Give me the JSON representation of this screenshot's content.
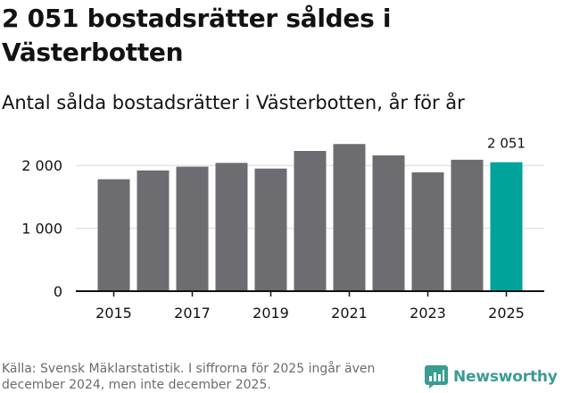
{
  "title": "2 051 bostadsrätter såldes i Västerbotten",
  "subtitle": "Antal sålda bostadsrätter i Västerbotten, år för år",
  "source": "Källa: Svensk Mäklarstatistik. I siffrorna för 2025 ingår även december 2024, men inte december 2025.",
  "brand": {
    "name": "Newsworthy",
    "icon": "newsworthy-logo-icon",
    "color": "#3a9c92"
  },
  "colors": {
    "bar": "#6d6c70",
    "highlight": "#00a39b",
    "grid": "#d9d9d9",
    "axis": "#121212"
  },
  "chart_data": {
    "type": "bar",
    "categories": [
      "2015",
      "2016",
      "2017",
      "2018",
      "2019",
      "2020",
      "2021",
      "2022",
      "2023",
      "2024",
      "2025"
    ],
    "values": [
      1780,
      1920,
      1980,
      2040,
      1950,
      2230,
      2340,
      2160,
      1890,
      2090,
      2051
    ],
    "highlight_index": 10,
    "highlight_label": "2 051",
    "x_tick_labels": [
      "2015",
      "2017",
      "2019",
      "2021",
      "2023",
      "2025"
    ],
    "y_ticks": [
      0,
      1000,
      2000
    ],
    "y_tick_labels": [
      "0",
      "1 000",
      "2 000"
    ],
    "ylim": [
      0,
      2500
    ],
    "grid": true,
    "xlabel": "",
    "ylabel": ""
  }
}
